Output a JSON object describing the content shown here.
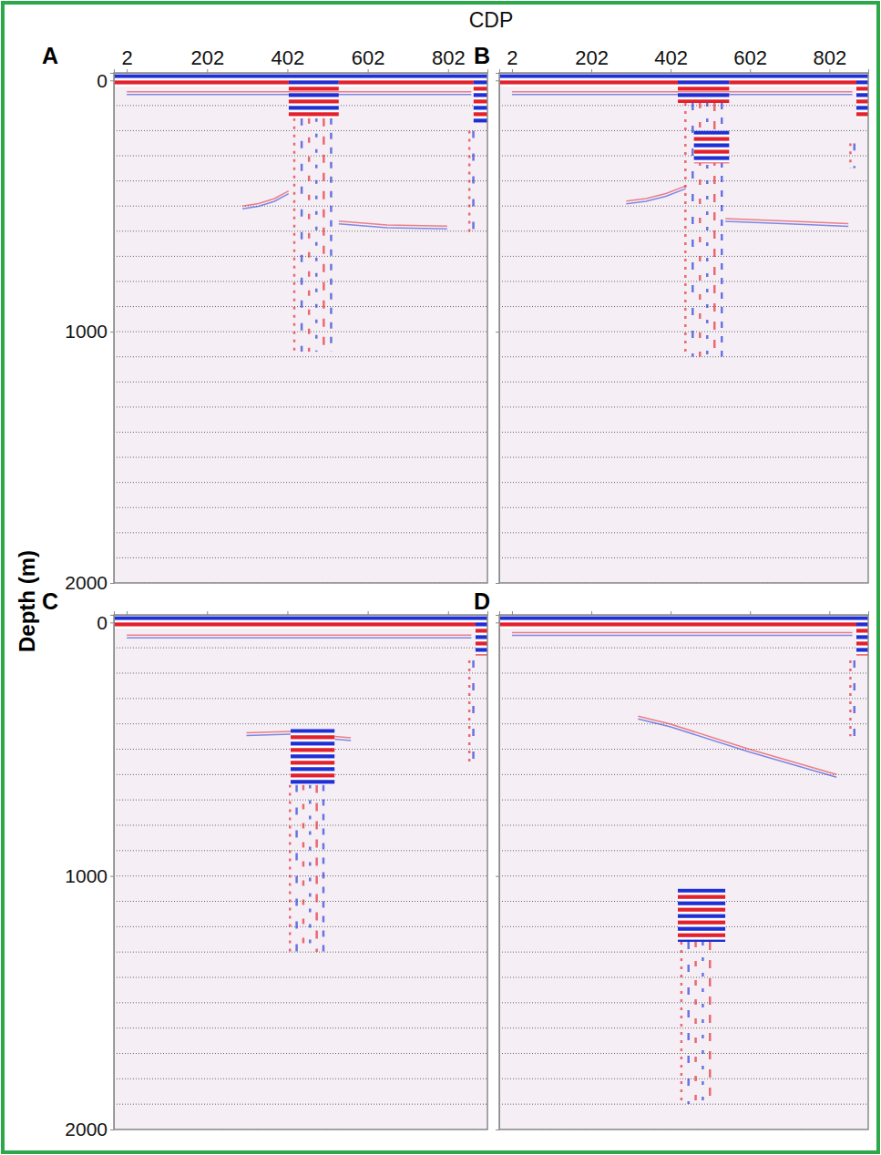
{
  "chart_data": [
    {
      "type": "seismic",
      "title": "A",
      "xlabel": "CDP",
      "ylabel": "Depth (m)",
      "xlim": [
        -30,
        900
      ],
      "xticks": [
        2,
        202,
        402,
        602,
        802
      ],
      "ylim": [
        -30,
        2000
      ],
      "yticks": [
        0,
        1000,
        2000
      ],
      "ygrid": [
        0,
        100,
        200,
        300,
        400,
        500,
        600,
        700,
        800,
        900,
        1000,
        1100,
        1200,
        1300,
        1400,
        1500,
        1600,
        1700,
        1800,
        1900,
        2000
      ],
      "grid": true,
      "tick_labels": true,
      "anomalies": [
        {
          "cdp": [
            -30,
            900
          ],
          "depth": [
            -25,
            25
          ]
        },
        {
          "cdp": [
            405,
            530
          ],
          "depth": [
            0,
            150
          ]
        },
        {
          "cdp": [
            865,
            900
          ],
          "depth": [
            0,
            170
          ]
        }
      ],
      "scatter": [
        {
          "cdp": [
            410,
            520
          ],
          "depth": [
            150,
            1080
          ]
        },
        {
          "cdp": [
            850,
            870
          ],
          "depth": [
            200,
            620
          ]
        }
      ],
      "reflectors": [
        {
          "cdp": [
            2,
            860
          ],
          "depth": [
            45,
            45
          ]
        },
        {
          "cdp": [
            290,
            330,
            370,
            405
          ],
          "depth": [
            500,
            490,
            470,
            440
          ]
        },
        {
          "cdp": [
            530,
            650,
            800
          ],
          "depth": [
            560,
            575,
            580
          ]
        }
      ]
    },
    {
      "type": "seismic",
      "title": "B",
      "xlim": [
        -30,
        900
      ],
      "xticks": [
        2,
        202,
        402,
        602,
        802
      ],
      "ylim": [
        -30,
        2000
      ],
      "yticks": [
        0,
        1000,
        2000
      ],
      "ygrid": [
        0,
        100,
        200,
        300,
        400,
        500,
        600,
        700,
        800,
        900,
        1000,
        1100,
        1200,
        1300,
        1400,
        1500,
        1600,
        1700,
        1800,
        1900,
        2000
      ],
      "grid": true,
      "tick_labels": "x",
      "anomalies": [
        {
          "cdp": [
            -30,
            900
          ],
          "depth": [
            -25,
            25
          ]
        },
        {
          "cdp": [
            420,
            550
          ],
          "depth": [
            0,
            90
          ]
        },
        {
          "cdp": [
            460,
            550
          ],
          "depth": [
            200,
            330
          ]
        },
        {
          "cdp": [
            870,
            900
          ],
          "depth": [
            0,
            150
          ]
        }
      ],
      "scatter": [
        {
          "cdp": [
            430,
            540
          ],
          "depth": [
            90,
            1100
          ]
        },
        {
          "cdp": [
            850,
            870
          ],
          "depth": [
            250,
            350
          ]
        }
      ],
      "reflectors": [
        {
          "cdp": [
            2,
            860
          ],
          "depth": [
            45,
            45
          ]
        },
        {
          "cdp": [
            290,
            340,
            390,
            440
          ],
          "depth": [
            480,
            470,
            450,
            420
          ]
        },
        {
          "cdp": [
            540,
            700,
            850
          ],
          "depth": [
            550,
            560,
            570
          ]
        }
      ]
    },
    {
      "type": "seismic",
      "title": "C",
      "xlim": [
        -30,
        900
      ],
      "xticks": [
        2,
        202,
        402,
        602,
        802
      ],
      "ylim": [
        -30,
        2000
      ],
      "yticks": [
        0,
        1000,
        2000
      ],
      "ygrid": [
        0,
        100,
        200,
        300,
        400,
        500,
        600,
        700,
        800,
        900,
        1000,
        1100,
        1200,
        1300,
        1400,
        1500,
        1600,
        1700,
        1800,
        1900,
        2000
      ],
      "grid": true,
      "tick_labels": "y",
      "anomalies": [
        {
          "cdp": [
            -30,
            900
          ],
          "depth": [
            -25,
            25
          ]
        },
        {
          "cdp": [
            410,
            520
          ],
          "depth": [
            420,
            640
          ]
        },
        {
          "cdp": [
            870,
            900
          ],
          "depth": [
            0,
            130
          ]
        }
      ],
      "scatter": [
        {
          "cdp": [
            400,
            500
          ],
          "depth": [
            640,
            1300
          ]
        },
        {
          "cdp": [
            850,
            870
          ],
          "depth": [
            150,
            550
          ]
        }
      ],
      "reflectors": [
        {
          "cdp": [
            2,
            860
          ],
          "depth": [
            50,
            50
          ]
        },
        {
          "cdp": [
            300,
            410
          ],
          "depth": [
            435,
            430
          ]
        },
        {
          "cdp": [
            520,
            560
          ],
          "depth": [
            450,
            455
          ]
        }
      ]
    },
    {
      "type": "seismic",
      "title": "D",
      "xlim": [
        -30,
        900
      ],
      "xticks": [
        2,
        202,
        402,
        602,
        802
      ],
      "ylim": [
        -30,
        2000
      ],
      "yticks": [
        0,
        1000,
        2000
      ],
      "ygrid": [
        0,
        100,
        200,
        300,
        400,
        500,
        600,
        700,
        800,
        900,
        1000,
        1100,
        1200,
        1300,
        1400,
        1500,
        1600,
        1700,
        1800,
        1900,
        2000
      ],
      "grid": true,
      "tick_labels": false,
      "anomalies": [
        {
          "cdp": [
            -30,
            900
          ],
          "depth": [
            -25,
            25
          ]
        },
        {
          "cdp": [
            420,
            540
          ],
          "depth": [
            1050,
            1260
          ]
        },
        {
          "cdp": [
            870,
            900
          ],
          "depth": [
            0,
            130
          ]
        }
      ],
      "scatter": [
        {
          "cdp": [
            420,
            510
          ],
          "depth": [
            1260,
            1900
          ]
        },
        {
          "cdp": [
            850,
            870
          ],
          "depth": [
            150,
            450
          ]
        }
      ],
      "reflectors": [
        {
          "cdp": [
            2,
            860
          ],
          "depth": [
            40,
            40
          ]
        },
        {
          "cdp": [
            320,
            400,
            600,
            820
          ],
          "depth": [
            370,
            400,
            500,
            600
          ]
        }
      ]
    }
  ]
}
